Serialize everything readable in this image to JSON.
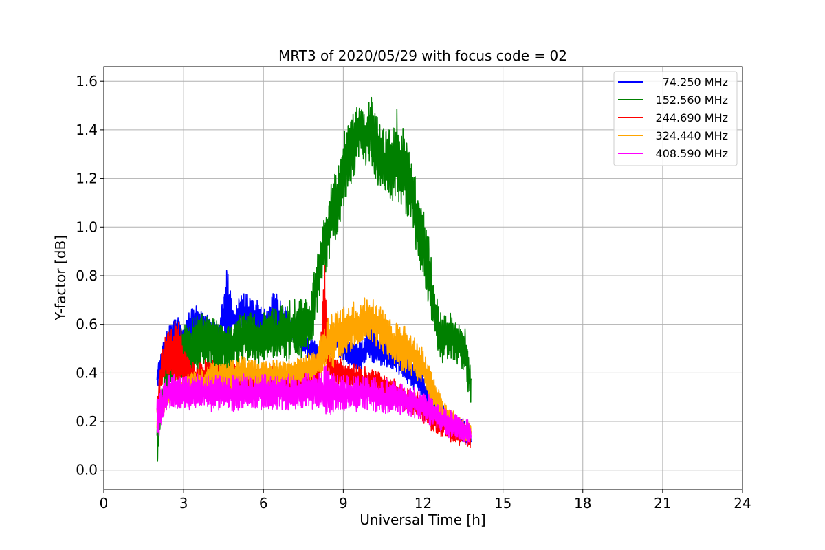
{
  "chart_data": {
    "type": "line",
    "title": "MRT3 of 2020/05/29 with focus code = 02",
    "xlabel": "Universal Time [h]",
    "ylabel": "Y-factor [dB]",
    "xlim": [
      0,
      24
    ],
    "ylim": [
      -0.08,
      1.66
    ],
    "xticks": [
      0,
      3,
      6,
      9,
      12,
      15,
      18,
      21,
      24
    ],
    "yticks": [
      0.0,
      0.2,
      0.4,
      0.6,
      0.8,
      1.0,
      1.2,
      1.4,
      1.6
    ],
    "ytick_labels": [
      "0.0",
      "0.2",
      "0.4",
      "0.6",
      "0.8",
      "1.0",
      "1.2",
      "1.4",
      "1.6"
    ],
    "grid": true,
    "legend_position": "top-right",
    "series": [
      {
        "name": "74.250 MHz",
        "color": "#0000ff",
        "x": [
          2.0,
          2.2,
          2.5,
          2.8,
          3.0,
          3.3,
          3.6,
          4.0,
          4.3,
          4.6,
          4.9,
          5.2,
          5.5,
          5.8,
          6.1,
          6.4,
          6.7,
          7.0,
          7.3,
          7.6,
          7.9,
          8.2,
          8.5,
          8.8,
          9.1,
          9.4,
          9.7,
          10.0,
          10.3,
          10.6,
          10.9,
          11.2,
          11.5,
          11.8,
          12.1,
          12.4,
          12.7,
          13.0,
          13.3,
          13.6,
          13.8
        ],
        "y": [
          0.35,
          0.46,
          0.52,
          0.56,
          0.52,
          0.58,
          0.6,
          0.58,
          0.55,
          0.62,
          0.6,
          0.64,
          0.62,
          0.6,
          0.58,
          0.62,
          0.6,
          0.56,
          0.54,
          0.5,
          0.48,
          0.46,
          0.5,
          0.52,
          0.48,
          0.45,
          0.46,
          0.5,
          0.48,
          0.46,
          0.45,
          0.42,
          0.38,
          0.36,
          0.3,
          0.25,
          0.22,
          0.18,
          0.16,
          0.14,
          0.12
        ],
        "peak_y": [
          0.42,
          0.52,
          0.62,
          0.64,
          0.58,
          0.7,
          0.66,
          0.64,
          0.6,
          0.86,
          0.66,
          0.75,
          0.72,
          0.7,
          0.66,
          0.74,
          0.7,
          0.64,
          0.6,
          0.56,
          0.54,
          0.52,
          0.58,
          0.62,
          0.56,
          0.52,
          0.54,
          0.6,
          0.56,
          0.54,
          0.52,
          0.5,
          0.46,
          0.43,
          0.38,
          0.32,
          0.28,
          0.24,
          0.22,
          0.2,
          0.18
        ]
      },
      {
        "name": "152.560 MHz",
        "color": "#008000",
        "x": [
          2.0,
          2.3,
          2.6,
          3.0,
          3.4,
          3.8,
          4.2,
          4.6,
          5.0,
          5.4,
          5.8,
          6.2,
          6.6,
          7.0,
          7.4,
          7.8,
          8.0,
          8.2,
          8.4,
          8.6,
          8.8,
          9.0,
          9.2,
          9.4,
          9.6,
          9.8,
          10.0,
          10.2,
          10.4,
          10.6,
          10.8,
          11.0,
          11.2,
          11.4,
          11.6,
          11.8,
          12.0,
          12.2,
          12.4,
          12.6,
          12.8,
          13.0,
          13.2,
          13.4,
          13.6,
          13.8
        ],
        "y": [
          0.08,
          0.35,
          0.42,
          0.45,
          0.48,
          0.5,
          0.48,
          0.46,
          0.5,
          0.52,
          0.5,
          0.52,
          0.54,
          0.52,
          0.55,
          0.58,
          0.72,
          0.85,
          0.92,
          1.02,
          1.08,
          1.18,
          1.25,
          1.3,
          1.38,
          1.32,
          1.35,
          1.3,
          1.25,
          1.22,
          1.2,
          1.25,
          1.2,
          1.15,
          1.1,
          0.95,
          0.88,
          0.78,
          0.62,
          0.52,
          0.5,
          0.52,
          0.5,
          0.48,
          0.45,
          0.3
        ],
        "peak_y": [
          0.2,
          0.45,
          0.55,
          0.6,
          0.66,
          0.64,
          0.62,
          0.6,
          0.64,
          0.66,
          0.64,
          0.66,
          0.68,
          0.7,
          0.72,
          0.74,
          0.9,
          1.0,
          1.1,
          1.22,
          1.28,
          1.38,
          1.46,
          1.5,
          1.56,
          1.48,
          1.58,
          1.48,
          1.46,
          1.42,
          1.4,
          1.5,
          1.42,
          1.38,
          1.3,
          1.16,
          1.08,
          0.98,
          0.8,
          0.66,
          0.64,
          0.66,
          0.62,
          0.6,
          0.58,
          0.45
        ]
      },
      {
        "name": "244.690 MHz",
        "color": "#ff0000",
        "x": [
          2.0,
          2.2,
          2.5,
          2.8,
          3.1,
          3.5,
          3.9,
          4.3,
          4.6,
          4.9,
          5.3,
          5.7,
          6.1,
          6.5,
          6.9,
          7.3,
          7.7,
          8.1,
          8.3,
          8.5,
          8.9,
          9.3,
          9.7,
          10.1,
          10.5,
          10.9,
          11.3,
          11.7,
          12.1,
          12.5,
          12.9,
          13.3,
          13.8
        ],
        "y": [
          0.25,
          0.4,
          0.45,
          0.44,
          0.38,
          0.36,
          0.38,
          0.37,
          0.3,
          0.36,
          0.35,
          0.34,
          0.36,
          0.35,
          0.34,
          0.35,
          0.36,
          0.38,
          0.55,
          0.4,
          0.38,
          0.36,
          0.35,
          0.34,
          0.33,
          0.3,
          0.28,
          0.26,
          0.22,
          0.18,
          0.16,
          0.14,
          0.12
        ],
        "peak_y": [
          0.3,
          0.52,
          0.6,
          0.64,
          0.48,
          0.44,
          0.46,
          0.45,
          0.38,
          0.44,
          0.42,
          0.42,
          0.44,
          0.43,
          0.42,
          0.43,
          0.44,
          0.5,
          0.86,
          0.48,
          0.46,
          0.44,
          0.43,
          0.42,
          0.4,
          0.38,
          0.35,
          0.33,
          0.29,
          0.25,
          0.23,
          0.21,
          0.18
        ]
      },
      {
        "name": "324.440 MHz",
        "color": "#ffa500",
        "x": [
          2.0,
          2.4,
          2.8,
          3.2,
          3.6,
          4.0,
          4.4,
          4.8,
          5.2,
          5.6,
          6.0,
          6.4,
          6.8,
          7.2,
          7.6,
          8.0,
          8.4,
          8.8,
          9.2,
          9.6,
          10.0,
          10.4,
          10.8,
          11.2,
          11.6,
          12.0,
          12.4,
          12.8,
          13.2,
          13.6,
          13.8
        ],
        "y": [
          0.2,
          0.3,
          0.32,
          0.33,
          0.34,
          0.35,
          0.36,
          0.37,
          0.38,
          0.38,
          0.37,
          0.38,
          0.37,
          0.38,
          0.4,
          0.42,
          0.48,
          0.52,
          0.55,
          0.58,
          0.6,
          0.56,
          0.5,
          0.48,
          0.45,
          0.4,
          0.3,
          0.22,
          0.18,
          0.14,
          0.16
        ],
        "peak_y": [
          0.26,
          0.36,
          0.38,
          0.4,
          0.42,
          0.44,
          0.45,
          0.46,
          0.47,
          0.46,
          0.45,
          0.46,
          0.45,
          0.46,
          0.48,
          0.5,
          0.64,
          0.68,
          0.7,
          0.7,
          0.72,
          0.68,
          0.62,
          0.62,
          0.58,
          0.5,
          0.4,
          0.28,
          0.24,
          0.2,
          0.22
        ]
      },
      {
        "name": "408.590 MHz",
        "color": "#ff00ff",
        "x": [
          2.0,
          2.4,
          2.8,
          3.2,
          3.6,
          4.0,
          4.4,
          4.8,
          5.2,
          5.6,
          6.0,
          6.4,
          6.8,
          7.2,
          7.6,
          8.0,
          8.4,
          8.8,
          9.2,
          9.6,
          10.0,
          10.4,
          10.8,
          11.2,
          11.6,
          12.0,
          12.4,
          12.8,
          13.2,
          13.6,
          13.8
        ],
        "y": [
          0.18,
          0.3,
          0.3,
          0.29,
          0.3,
          0.29,
          0.3,
          0.29,
          0.3,
          0.29,
          0.3,
          0.29,
          0.3,
          0.29,
          0.3,
          0.3,
          0.3,
          0.29,
          0.3,
          0.29,
          0.3,
          0.28,
          0.28,
          0.27,
          0.26,
          0.24,
          0.22,
          0.18,
          0.16,
          0.14,
          0.14
        ],
        "peak_y": [
          0.3,
          0.4,
          0.4,
          0.39,
          0.4,
          0.39,
          0.4,
          0.39,
          0.4,
          0.39,
          0.4,
          0.39,
          0.4,
          0.39,
          0.4,
          0.4,
          0.44,
          0.39,
          0.4,
          0.39,
          0.4,
          0.38,
          0.38,
          0.36,
          0.35,
          0.33,
          0.3,
          0.26,
          0.24,
          0.22,
          0.2
        ]
      }
    ]
  }
}
